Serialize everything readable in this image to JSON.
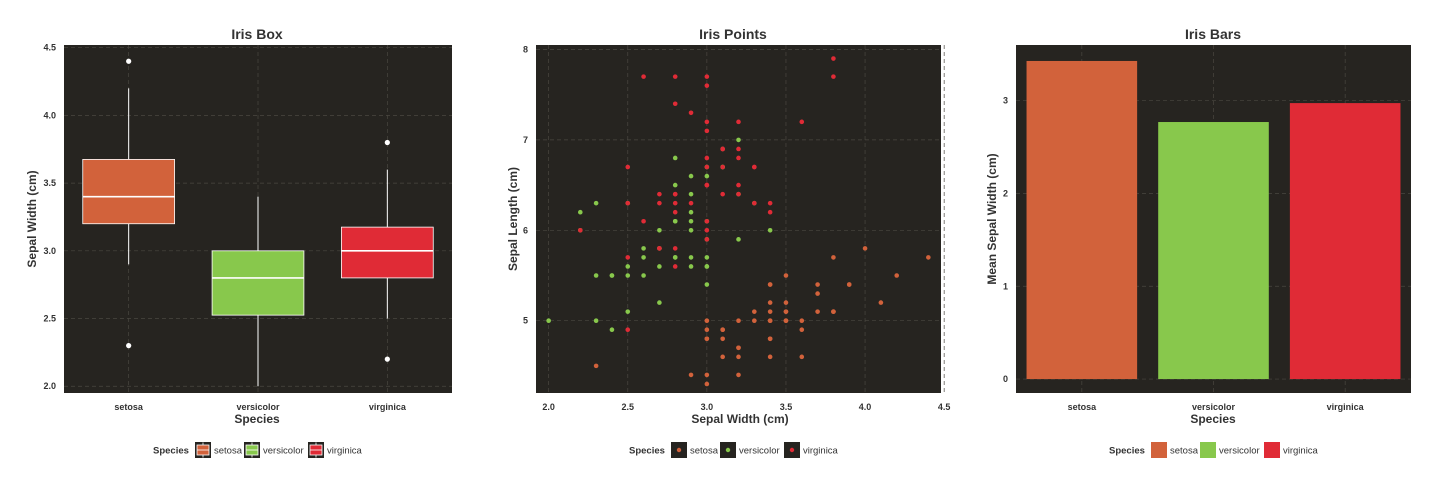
{
  "colors": {
    "panel_bg": "#262420",
    "grid": "#4a4740",
    "setosa": "#d2623b",
    "versicolor": "#88c84c",
    "virginica": "#e02b36"
  },
  "legend_title": "Species",
  "chart_data": [
    {
      "type": "box",
      "title": "Iris Box",
      "xlabel": "Species",
      "ylabel": "Sepal Width (cm)",
      "categories": [
        "setosa",
        "versicolor",
        "virginica"
      ],
      "ylim": [
        1.95,
        4.52
      ],
      "yticks": [
        "2.0",
        "2.5",
        "3.0",
        "3.5",
        "4.0",
        "4.5"
      ],
      "grid": true,
      "legend_placement": "bottom",
      "boxes": [
        {
          "name": "setosa",
          "q1": 3.2,
          "median": 3.4,
          "q3": 3.675,
          "whisker_low": 2.9,
          "whisker_high": 4.2,
          "outliers": [
            4.4,
            2.3
          ]
        },
        {
          "name": "versicolor",
          "q1": 2.525,
          "median": 2.8,
          "q3": 3.0,
          "whisker_low": 2.0,
          "whisker_high": 3.4,
          "outliers": []
        },
        {
          "name": "virginica",
          "q1": 2.8,
          "median": 3.0,
          "q3": 3.175,
          "whisker_low": 2.5,
          "whisker_high": 3.6,
          "outliers": [
            3.8,
            2.2
          ]
        }
      ]
    },
    {
      "type": "scatter",
      "title": "Iris Points",
      "xlabel": "Sepal Width (cm)",
      "ylabel": "Sepal Length (cm)",
      "xlim": [
        1.92,
        4.48
      ],
      "ylim": [
        4.2,
        8.05
      ],
      "xticks": [
        "2.0",
        "2.5",
        "3.0",
        "3.5",
        "4.0",
        "4.5"
      ],
      "yticks": [
        "5",
        "6",
        "7",
        "8"
      ],
      "grid": true,
      "legend_placement": "bottom",
      "series": [
        {
          "name": "setosa",
          "points": [
            [
              3.5,
              5.1
            ],
            [
              3.0,
              4.9
            ],
            [
              3.2,
              4.7
            ],
            [
              3.1,
              4.6
            ],
            [
              3.6,
              5.0
            ],
            [
              3.9,
              5.4
            ],
            [
              3.4,
              4.6
            ],
            [
              3.4,
              5.0
            ],
            [
              2.9,
              4.4
            ],
            [
              3.1,
              4.9
            ],
            [
              3.7,
              5.4
            ],
            [
              3.4,
              4.8
            ],
            [
              3.0,
              4.8
            ],
            [
              3.0,
              4.3
            ],
            [
              4.0,
              5.8
            ],
            [
              4.4,
              5.7
            ],
            [
              3.9,
              5.4
            ],
            [
              3.5,
              5.1
            ],
            [
              3.8,
              5.7
            ],
            [
              3.8,
              5.1
            ],
            [
              3.4,
              5.4
            ],
            [
              3.7,
              5.1
            ],
            [
              3.6,
              4.6
            ],
            [
              3.3,
              5.1
            ],
            [
              3.4,
              4.8
            ],
            [
              3.0,
              5.0
            ],
            [
              3.4,
              5.0
            ],
            [
              3.5,
              5.2
            ],
            [
              3.4,
              5.2
            ],
            [
              3.2,
              4.7
            ],
            [
              3.1,
              4.8
            ],
            [
              3.4,
              5.4
            ],
            [
              4.1,
              5.2
            ],
            [
              4.2,
              5.5
            ],
            [
              3.1,
              4.9
            ],
            [
              3.2,
              5.0
            ],
            [
              3.5,
              5.5
            ],
            [
              3.6,
              4.9
            ],
            [
              3.0,
              4.4
            ],
            [
              3.4,
              5.1
            ],
            [
              3.5,
              5.0
            ],
            [
              2.3,
              4.5
            ],
            [
              3.2,
              4.4
            ],
            [
              3.5,
              5.0
            ],
            [
              3.8,
              5.1
            ],
            [
              3.0,
              4.8
            ],
            [
              3.8,
              5.1
            ],
            [
              3.2,
              4.6
            ],
            [
              3.7,
              5.3
            ],
            [
              3.3,
              5.0
            ]
          ]
        },
        {
          "name": "versicolor",
          "points": [
            [
              3.2,
              7.0
            ],
            [
              3.2,
              6.4
            ],
            [
              3.1,
              6.9
            ],
            [
              2.3,
              5.5
            ],
            [
              2.8,
              6.5
            ],
            [
              2.8,
              5.7
            ],
            [
              3.3,
              6.3
            ],
            [
              2.4,
              4.9
            ],
            [
              2.9,
              6.6
            ],
            [
              2.7,
              5.2
            ],
            [
              2.0,
              5.0
            ],
            [
              3.0,
              5.9
            ],
            [
              2.2,
              6.0
            ],
            [
              2.9,
              6.1
            ],
            [
              2.9,
              5.6
            ],
            [
              3.1,
              6.7
            ],
            [
              3.0,
              5.6
            ],
            [
              2.7,
              5.8
            ],
            [
              2.2,
              6.2
            ],
            [
              2.5,
              5.6
            ],
            [
              3.2,
              5.9
            ],
            [
              2.8,
              6.1
            ],
            [
              2.5,
              6.3
            ],
            [
              2.8,
              6.1
            ],
            [
              2.9,
              6.4
            ],
            [
              3.0,
              6.6
            ],
            [
              2.8,
              6.8
            ],
            [
              3.0,
              6.7
            ],
            [
              2.9,
              6.0
            ],
            [
              2.6,
              5.7
            ],
            [
              2.4,
              5.5
            ],
            [
              2.4,
              5.5
            ],
            [
              2.7,
              5.8
            ],
            [
              2.7,
              6.0
            ],
            [
              3.0,
              5.4
            ],
            [
              3.4,
              6.0
            ],
            [
              3.1,
              6.7
            ],
            [
              2.3,
              6.3
            ],
            [
              3.0,
              5.6
            ],
            [
              2.5,
              5.5
            ],
            [
              2.6,
              5.5
            ],
            [
              3.0,
              6.1
            ],
            [
              2.6,
              5.8
            ],
            [
              2.3,
              5.0
            ],
            [
              2.7,
              5.6
            ],
            [
              3.0,
              5.7
            ],
            [
              2.9,
              5.7
            ],
            [
              2.9,
              6.2
            ],
            [
              2.5,
              5.1
            ],
            [
              2.8,
              5.7
            ]
          ]
        },
        {
          "name": "virginica",
          "points": [
            [
              3.3,
              6.3
            ],
            [
              2.7,
              5.8
            ],
            [
              3.0,
              7.1
            ],
            [
              2.9,
              6.3
            ],
            [
              3.0,
              6.5
            ],
            [
              3.0,
              7.6
            ],
            [
              2.5,
              4.9
            ],
            [
              2.9,
              7.3
            ],
            [
              2.5,
              6.7
            ],
            [
              3.6,
              7.2
            ],
            [
              3.2,
              6.5
            ],
            [
              2.7,
              6.4
            ],
            [
              3.0,
              6.8
            ],
            [
              2.5,
              5.7
            ],
            [
              2.8,
              5.8
            ],
            [
              3.2,
              6.4
            ],
            [
              3.0,
              6.5
            ],
            [
              3.8,
              7.7
            ],
            [
              2.6,
              7.7
            ],
            [
              2.2,
              6.0
            ],
            [
              3.2,
              6.9
            ],
            [
              2.8,
              5.6
            ],
            [
              2.8,
              7.7
            ],
            [
              2.7,
              6.3
            ],
            [
              3.3,
              6.7
            ],
            [
              3.2,
              7.2
            ],
            [
              2.8,
              6.2
            ],
            [
              3.0,
              6.1
            ],
            [
              2.8,
              6.4
            ],
            [
              3.0,
              7.2
            ],
            [
              2.8,
              7.4
            ],
            [
              3.8,
              7.9
            ],
            [
              2.8,
              6.4
            ],
            [
              2.8,
              6.3
            ],
            [
              2.6,
              6.1
            ],
            [
              3.0,
              7.7
            ],
            [
              3.4,
              6.3
            ],
            [
              3.1,
              6.4
            ],
            [
              3.0,
              6.0
            ],
            [
              3.1,
              6.9
            ],
            [
              3.1,
              6.7
            ],
            [
              3.1,
              6.9
            ],
            [
              2.7,
              5.8
            ],
            [
              3.2,
              6.8
            ],
            [
              3.3,
              6.7
            ],
            [
              3.0,
              6.7
            ],
            [
              2.5,
              6.3
            ],
            [
              3.0,
              6.5
            ],
            [
              3.4,
              6.2
            ],
            [
              3.0,
              5.9
            ]
          ]
        }
      ]
    },
    {
      "type": "bar",
      "title": "Iris Bars",
      "xlabel": "Species",
      "ylabel": "Mean Sepal Width (cm)",
      "categories": [
        "setosa",
        "versicolor",
        "virginica"
      ],
      "values": [
        3.428,
        2.77,
        2.974
      ],
      "ylim": [
        -0.15,
        3.6
      ],
      "yticks": [
        "0",
        "1",
        "2",
        "3"
      ],
      "grid": true,
      "legend_placement": "bottom"
    }
  ]
}
